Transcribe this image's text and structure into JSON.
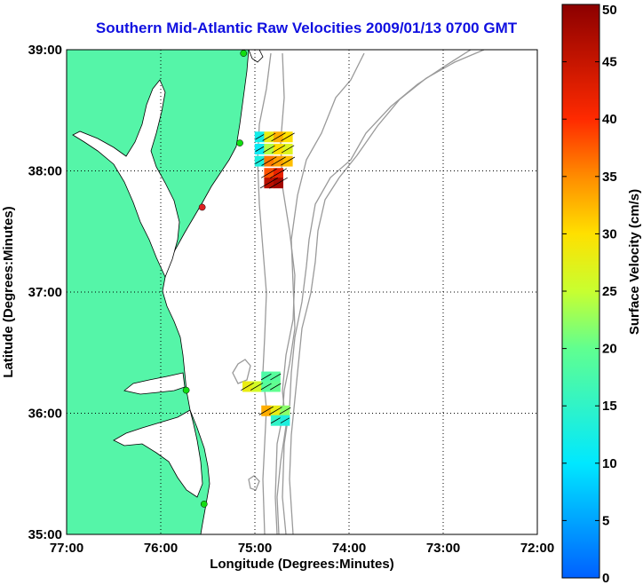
{
  "title": "Southern Mid-Atlantic Raw Velocities 2009/01/13 0700 GMT",
  "axes": {
    "xlabel": "Longitude (Degrees:Minutes)",
    "ylabel": "Latitude (Degrees:Minutes)",
    "x_ticks": [
      "77:00",
      "76:00",
      "75:00",
      "74:00",
      "73:00",
      "72:00"
    ],
    "y_ticks": [
      "39:00",
      "38:00",
      "37:00",
      "36:00",
      "35:00"
    ],
    "x_values": [
      -77,
      -76,
      -75,
      -74,
      -73,
      -72
    ],
    "y_values": [
      39,
      38,
      37,
      36,
      35
    ],
    "xlim": [
      -77,
      -72
    ],
    "ylim": [
      35,
      39
    ],
    "grid": "dotted"
  },
  "colorbar": {
    "label": "Surface Velocity (cm/s)",
    "ticks": [
      "50",
      "45",
      "40",
      "35",
      "30",
      "25",
      "20",
      "15",
      "10",
      "5",
      "0"
    ],
    "range": [
      0,
      50
    ]
  },
  "colors": {
    "land": "#55f5a8",
    "coast": "#000000",
    "bathymetry": "#9a9a9a",
    "title": "#1010e0",
    "station": "#11dd11",
    "station_alt": "#dd2222"
  },
  "chart_data": {
    "type": "scatter",
    "description_free": true,
    "stations": [
      {
        "lon": -75.12,
        "lat": 38.97,
        "color": "station"
      },
      {
        "lon": -75.16,
        "lat": 38.23,
        "color": "station"
      },
      {
        "lon": -75.56,
        "lat": 37.7,
        "color": "station_alt"
      },
      {
        "lon": -75.73,
        "lat": 36.19,
        "color": "station"
      },
      {
        "lon": -75.54,
        "lat": 35.25,
        "color": "station"
      }
    ],
    "velocity_cells_north": [
      {
        "lon": -74.95,
        "lat": 38.28,
        "v": 12
      },
      {
        "lon": -74.85,
        "lat": 38.28,
        "v": 28
      },
      {
        "lon": -74.75,
        "lat": 38.28,
        "v": 33
      },
      {
        "lon": -74.65,
        "lat": 38.28,
        "v": 30
      },
      {
        "lon": -74.95,
        "lat": 38.18,
        "v": 11
      },
      {
        "lon": -74.85,
        "lat": 38.18,
        "v": 24
      },
      {
        "lon": -74.75,
        "lat": 38.18,
        "v": 30
      },
      {
        "lon": -74.65,
        "lat": 38.18,
        "v": 27
      },
      {
        "lon": -74.95,
        "lat": 38.08,
        "v": 13
      },
      {
        "lon": -74.85,
        "lat": 38.08,
        "v": 36
      },
      {
        "lon": -74.75,
        "lat": 38.08,
        "v": 34
      },
      {
        "lon": -74.65,
        "lat": 38.08,
        "v": 32
      },
      {
        "lon": -74.85,
        "lat": 37.98,
        "v": 38
      },
      {
        "lon": -74.75,
        "lat": 37.98,
        "v": 42
      },
      {
        "lon": -74.85,
        "lat": 37.9,
        "v": 46
      },
      {
        "lon": -74.75,
        "lat": 37.9,
        "v": 48
      }
    ],
    "velocity_cells_south": [
      {
        "lon": -74.88,
        "lat": 36.3,
        "v": 18
      },
      {
        "lon": -74.78,
        "lat": 36.3,
        "v": 19
      },
      {
        "lon": -75.08,
        "lat": 36.22,
        "v": 28
      },
      {
        "lon": -74.98,
        "lat": 36.22,
        "v": 26
      },
      {
        "lon": -74.88,
        "lat": 36.22,
        "v": 19
      },
      {
        "lon": -74.78,
        "lat": 36.22,
        "v": 20
      },
      {
        "lon": -74.88,
        "lat": 36.02,
        "v": 33
      },
      {
        "lon": -74.78,
        "lat": 36.02,
        "v": 28
      },
      {
        "lon": -74.68,
        "lat": 36.02,
        "v": 22
      },
      {
        "lon": -74.78,
        "lat": 35.94,
        "v": 15
      },
      {
        "lon": -74.68,
        "lat": 35.94,
        "v": 13
      }
    ]
  }
}
